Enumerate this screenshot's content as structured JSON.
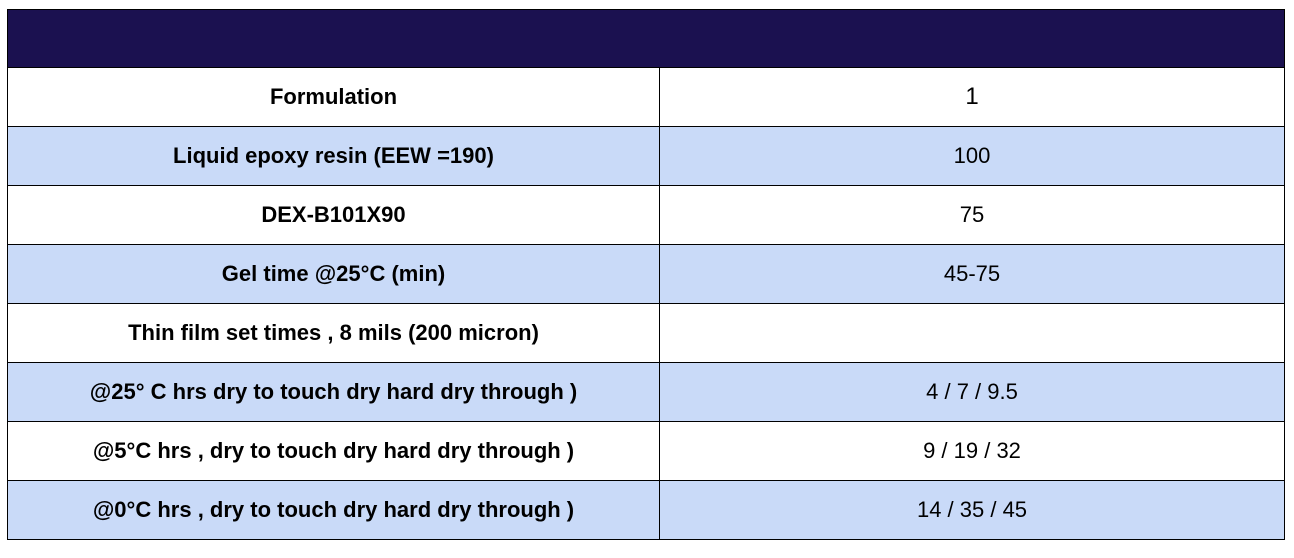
{
  "table": {
    "header_color": "#1b1150",
    "shade_color": "#c9daf8",
    "rows": [
      {
        "label": "Formulation",
        "value": "1"
      },
      {
        "label": "Liquid epoxy resin (EEW =190)",
        "value": "100"
      },
      {
        "label": "DEX-B101X90",
        "value": "75"
      },
      {
        "label": "Gel time @25°C (min)",
        "value": "45-75"
      },
      {
        "label": "Thin film set times , 8 mils (200 micron)",
        "value": ""
      },
      {
        "label": "@25° C hrs dry to touch dry hard dry through )",
        "value": "4 / 7 / 9.5"
      },
      {
        "label": "@5°C hrs , dry to touch dry hard dry through )",
        "value": "9 / 19 / 32"
      },
      {
        "label": "@0°C hrs , dry to touch dry hard dry through )",
        "value": "14 / 35 / 45"
      }
    ]
  }
}
